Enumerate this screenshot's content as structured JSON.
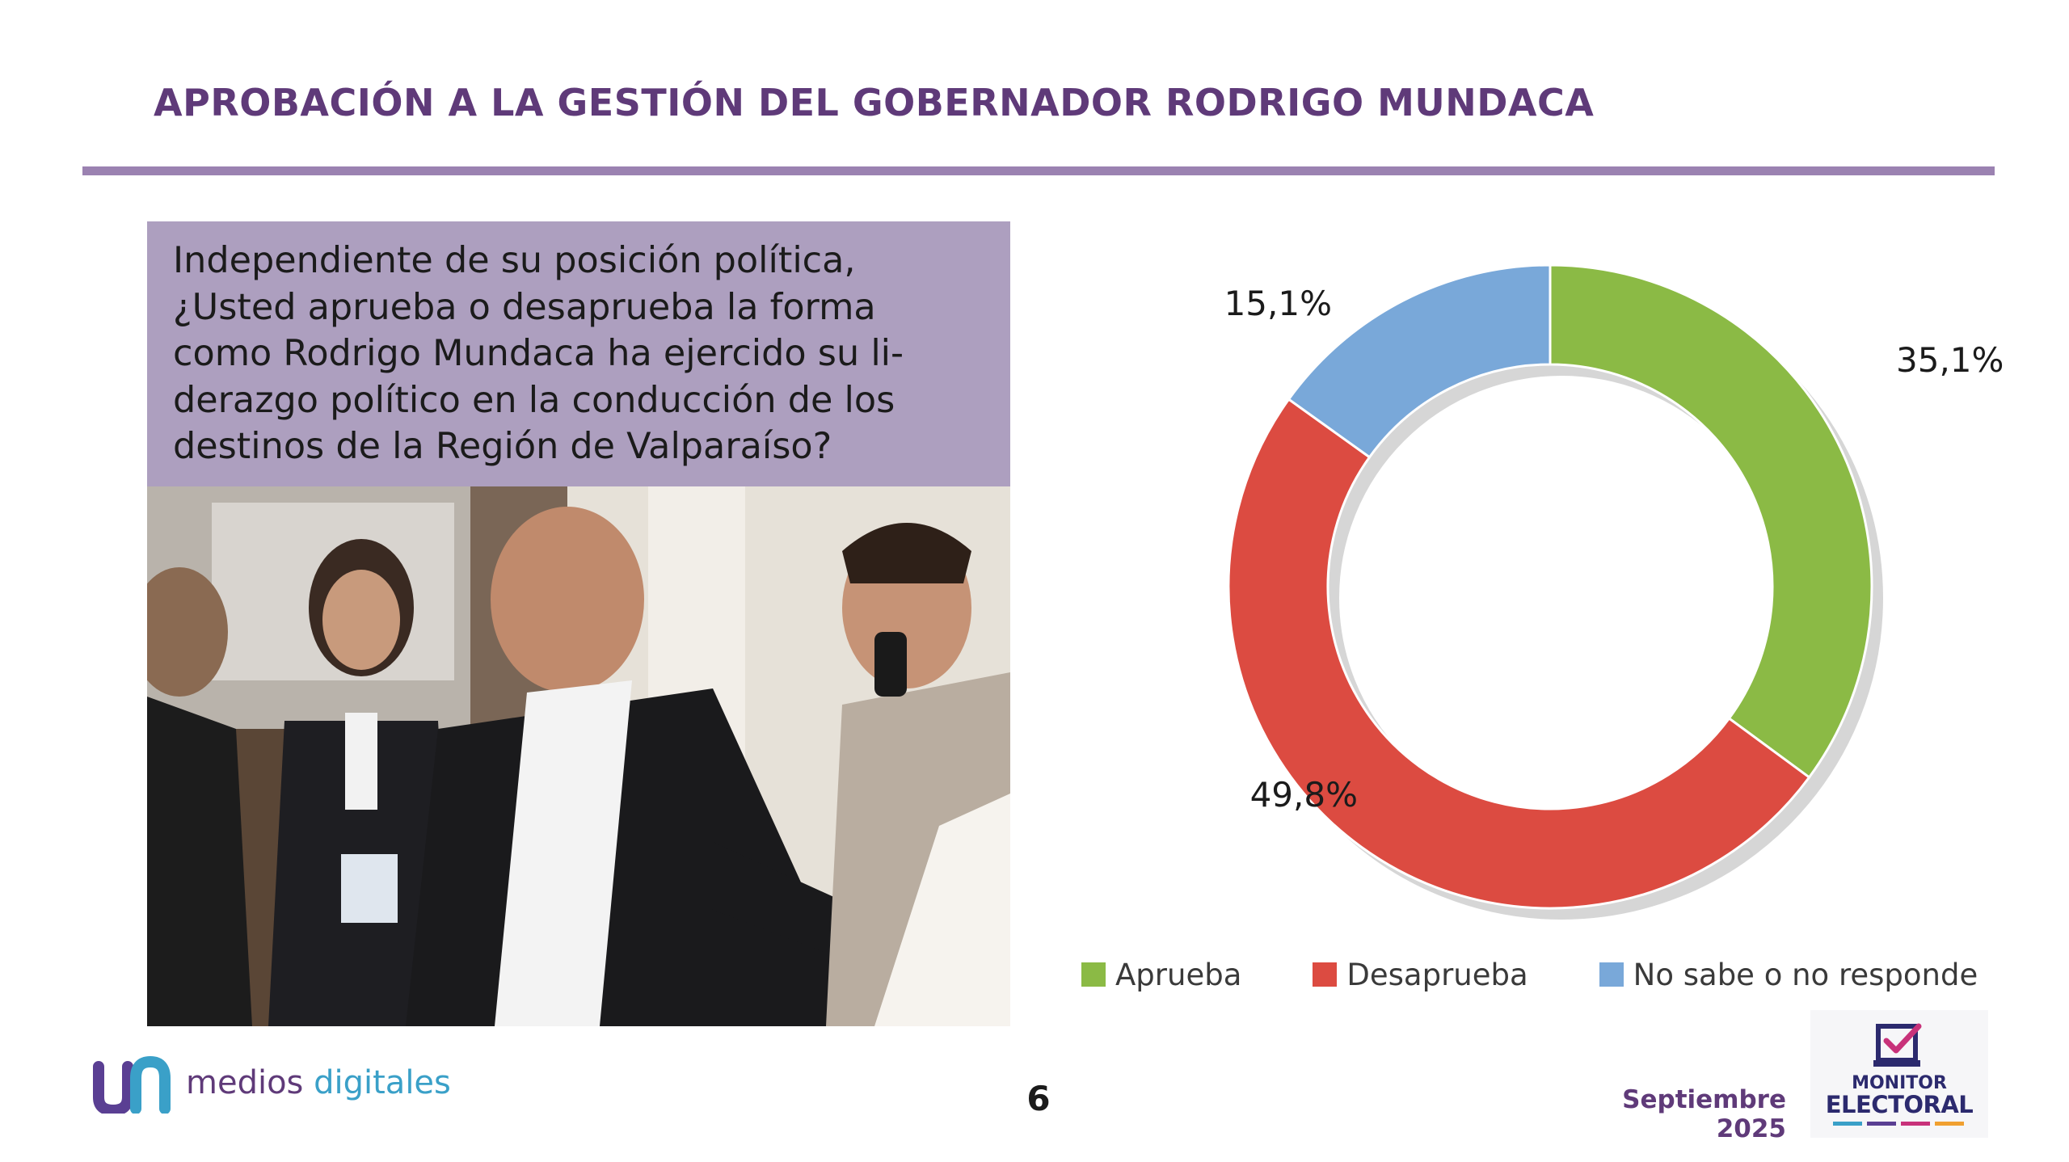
{
  "header": {
    "title": "APROBACIÓN A LA GESTIÓN DEL GOBERNADOR RODRIGO MUNDACA"
  },
  "question": {
    "lines": [
      "Independiente de su posición política,",
      "¿Usted aprueba o desaprueba la forma",
      "como Rodrigo Mundaca ha ejercido su li-",
      "derazgo político en la conducción de los",
      "destinos de la Región de Valparaíso?"
    ]
  },
  "chart_data": {
    "type": "pie",
    "donut": true,
    "title": "",
    "series": [
      {
        "name": "Aprueba",
        "value": 35.1,
        "label": "35,1%",
        "color": "#8bba45"
      },
      {
        "name": "Desaprueba",
        "value": 49.8,
        "label": "49,8%",
        "color": "#dc4b41"
      },
      {
        "name": "No sabe o no responde",
        "value": 15.1,
        "label": "15,1%",
        "color": "#79a8d9"
      }
    ],
    "legend_position": "bottom"
  },
  "footer": {
    "brand_word1": "medios",
    "brand_word2": "digitales",
    "page_number": "6",
    "date": "Septiembre 2025",
    "monitor_line1": "MONITOR",
    "monitor_line2": "ELECTORAL"
  },
  "colors": {
    "title": "#5f3a79",
    "rule": "#9b82b1",
    "question_bg": "#ad9fbf"
  },
  "icons": [
    "medios-digitales-logo-icon",
    "ballot-check-icon"
  ]
}
